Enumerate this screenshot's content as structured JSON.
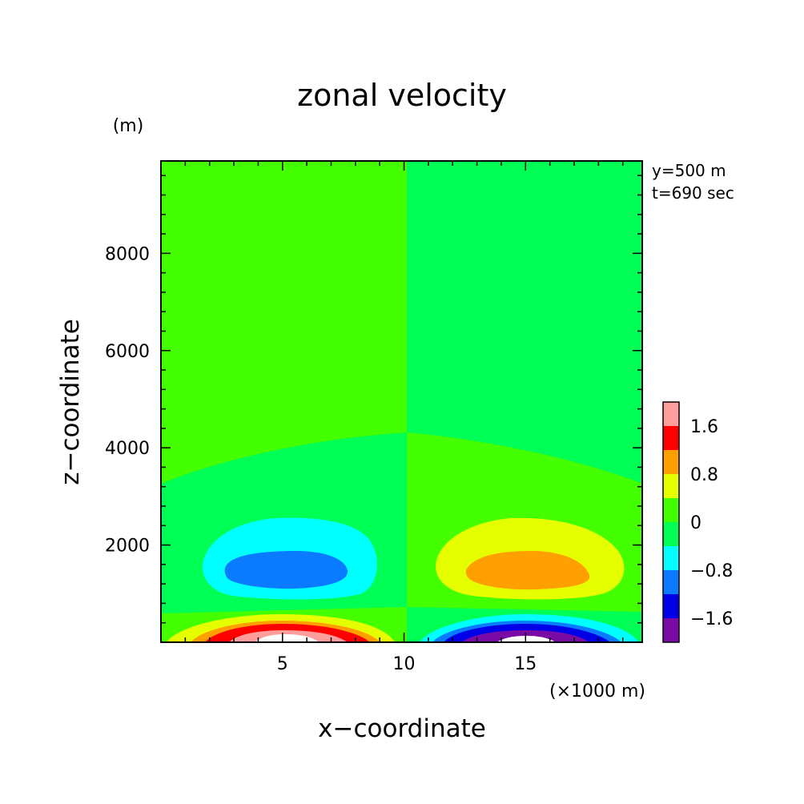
{
  "chart_data": {
    "type": "heatmap",
    "title": "zonal velocity",
    "xlabel": "x−coordinate",
    "ylabel": "z−coordinate",
    "x_unit": "(×1000 m)",
    "y_unit": "(m)",
    "xlim": [
      0,
      19.8
    ],
    "ylim": [
      0,
      9900
    ],
    "x_ticks": [
      5,
      10,
      15
    ],
    "y_ticks": [
      2000,
      4000,
      6000,
      8000
    ],
    "x_tick_labels": [
      "5",
      "10",
      "15"
    ],
    "y_tick_labels": [
      "2000",
      "4000",
      "6000",
      "8000"
    ],
    "annotations": [
      "y=500 m",
      "t=690 sec"
    ],
    "colorbar": {
      "levels": [
        -2.0,
        -1.6,
        -1.2,
        -0.8,
        -0.4,
        0,
        0.4,
        0.8,
        1.2,
        1.6,
        2.0
      ],
      "colors": [
        "#7a0aa6",
        "#0000e8",
        "#0a7aff",
        "#00ffff",
        "#00ff55",
        "#44ff00",
        "#e6ff00",
        "#ff9f00",
        "#ff0000",
        "#ff9c9c"
      ],
      "tick_values": [
        -1.6,
        -0.8,
        0,
        0.8,
        1.6
      ],
      "tick_labels": [
        "−1.6",
        "−0.8",
        "0",
        "0.8",
        "1.6"
      ]
    },
    "regions": [
      {
        "level": 0.2,
        "desc": "upper-left field",
        "x_range": [
          0,
          10
        ],
        "z_range": [
          3300,
          9900
        ]
      },
      {
        "level": -0.2,
        "desc": "upper-right field",
        "x_range": [
          10,
          19.8
        ],
        "z_range": [
          4300,
          9900
        ]
      },
      {
        "level": -0.2,
        "desc": "mid-left band",
        "x_range": [
          0,
          10
        ],
        "z_range": [
          800,
          4300
        ]
      },
      {
        "level": 0.2,
        "desc": "mid-right band",
        "x_range": [
          10,
          19.8
        ],
        "z_range": [
          800,
          4300
        ]
      },
      {
        "level": -0.6,
        "desc": "left upper cell outer",
        "center": [
          5.8,
          1600
        ],
        "x_range": [
          1.5,
          8.8
        ],
        "z_range": [
          900,
          2600
        ]
      },
      {
        "level": -1.0,
        "desc": "left upper cell core",
        "center": [
          5.8,
          1500
        ],
        "x_range": [
          2.6,
          7.7
        ],
        "z_range": [
          1100,
          1900
        ]
      },
      {
        "level": 0.6,
        "desc": "right upper cell outer",
        "center": [
          14.8,
          1600
        ],
        "x_range": [
          11.2,
          18.8
        ],
        "z_range": [
          900,
          2600
        ]
      },
      {
        "level": 1.0,
        "desc": "right upper cell core",
        "center": [
          14.8,
          1500
        ],
        "x_range": [
          12.0,
          17.5
        ],
        "z_range": [
          1100,
          1900
        ]
      },
      {
        "level": 2.0,
        "desc": "left surface jet max",
        "center": [
          5.8,
          0
        ],
        "x_range": [
          3.0,
          8.0
        ],
        "z_range": [
          0,
          200
        ]
      },
      {
        "level": -2.0,
        "desc": "right surface jet min",
        "center": [
          14.8,
          0
        ],
        "x_range": [
          12.5,
          17.5
        ],
        "z_range": [
          0,
          200
        ]
      }
    ]
  }
}
